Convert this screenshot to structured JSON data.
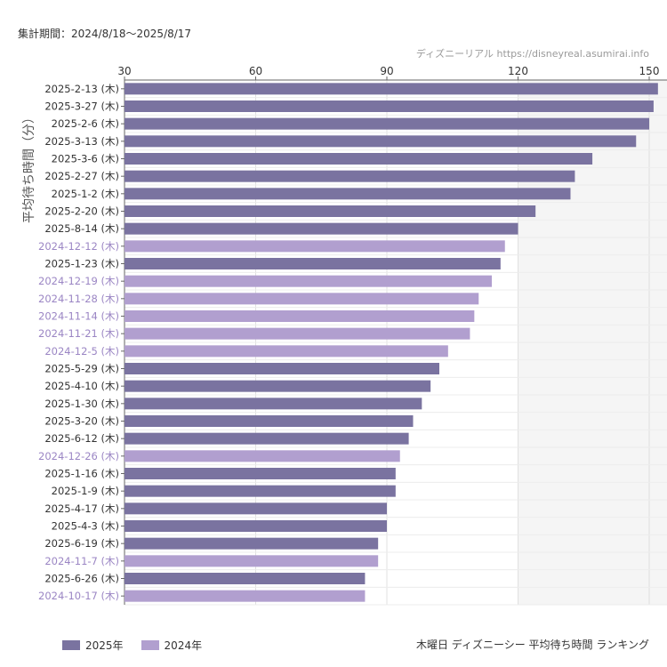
{
  "header": {
    "period": "集計期間：2024/8/18〜2025/8/17",
    "credit": "ディズニーリアル  https://disneyreal.asumirai.info"
  },
  "footer": {
    "title": "木曜日 ディズニーシー 平均待ち時間 ランキング"
  },
  "colors": {
    "y2025": "#7a73a0",
    "y2024": "#b19fcf",
    "shade": "#f5f5f5"
  },
  "chart_data": {
    "type": "bar",
    "orientation": "horizontal",
    "ylabel": "平均待ち時間（分）",
    "xlim": [
      30,
      152
    ],
    "xticks": [
      30,
      60,
      90,
      120,
      150
    ],
    "shaded_band": [
      120,
      152
    ],
    "legend": [
      {
        "name": "2025年",
        "color": "#7a73a0"
      },
      {
        "name": "2024年",
        "color": "#b19fcf"
      }
    ],
    "categories": [
      "2025-2-13 (木)",
      "2025-3-27 (木)",
      "2025-2-6 (木)",
      "2025-3-13 (木)",
      "2025-3-6 (木)",
      "2025-2-27 (木)",
      "2025-1-2 (木)",
      "2025-2-20 (木)",
      "2025-8-14 (木)",
      "2024-12-12 (木)",
      "2025-1-23 (木)",
      "2024-12-19 (木)",
      "2024-11-28 (木)",
      "2024-11-14 (木)",
      "2024-11-21 (木)",
      "2024-12-5 (木)",
      "2025-5-29 (木)",
      "2025-4-10 (木)",
      "2025-1-30 (木)",
      "2025-3-20 (木)",
      "2025-6-12 (木)",
      "2024-12-26 (木)",
      "2025-1-16 (木)",
      "2025-1-9 (木)",
      "2025-4-17 (木)",
      "2025-4-3 (木)",
      "2025-6-19 (木)",
      "2024-11-7 (木)",
      "2025-6-26 (木)",
      "2024-10-17 (木)"
    ],
    "values": [
      152,
      151,
      150,
      147,
      137,
      133,
      132,
      124,
      120,
      117,
      116,
      114,
      111,
      110,
      109,
      104,
      102,
      100,
      98,
      96,
      95,
      93,
      92,
      92,
      90,
      90,
      88,
      88,
      85,
      85
    ],
    "series_of": [
      "2025年",
      "2025年",
      "2025年",
      "2025年",
      "2025年",
      "2025年",
      "2025年",
      "2025年",
      "2025年",
      "2024年",
      "2025年",
      "2024年",
      "2024年",
      "2024年",
      "2024年",
      "2024年",
      "2025年",
      "2025年",
      "2025年",
      "2025年",
      "2025年",
      "2024年",
      "2025年",
      "2025年",
      "2025年",
      "2025年",
      "2025年",
      "2024年",
      "2025年",
      "2024年"
    ]
  }
}
